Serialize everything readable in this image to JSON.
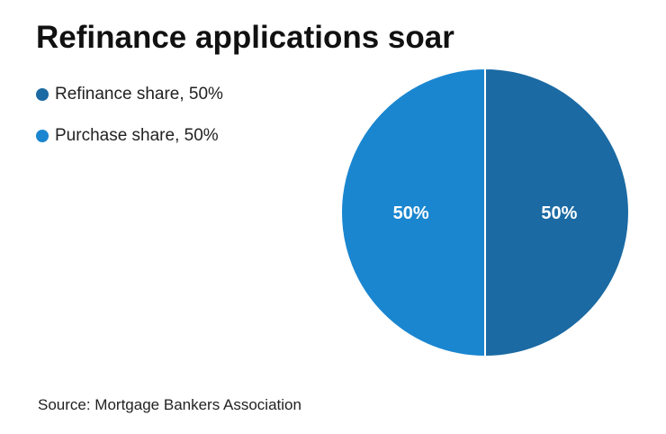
{
  "chart_data": {
    "type": "pie",
    "title": "Refinance applications soar",
    "source": "Source: Mortgage Bankers Association",
    "slices": [
      {
        "name": "Refinance share",
        "legend_label": "Refinance share, 50%",
        "value": 50,
        "label": "50%",
        "color": "#1b6aa3"
      },
      {
        "name": "Purchase share",
        "legend_label": "Purchase share, 50%",
        "value": 50,
        "label": "50%",
        "color": "#1a86d0"
      }
    ],
    "legend_position": "top-left"
  }
}
